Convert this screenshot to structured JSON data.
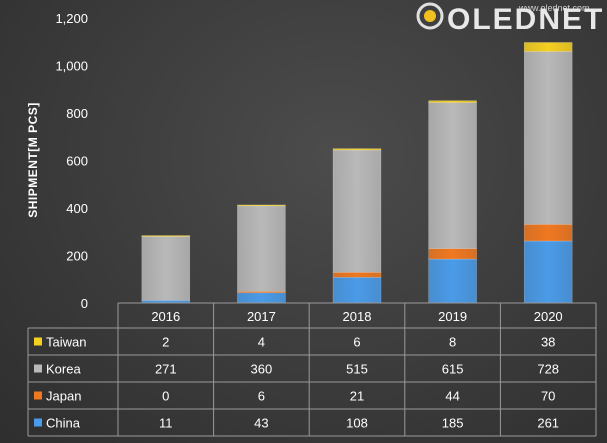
{
  "brand": {
    "url": "www.olednet.com",
    "name": "OLEDNET"
  },
  "chart_data": {
    "type": "bar",
    "stacked": true,
    "categories": [
      "2016",
      "2017",
      "2018",
      "2019",
      "2020"
    ],
    "series": [
      {
        "name": "China",
        "values": [
          11,
          43,
          108,
          185,
          261
        ],
        "color": "#4a9be8"
      },
      {
        "name": "Japan",
        "values": [
          0,
          6,
          21,
          44,
          70
        ],
        "color": "#f07820"
      },
      {
        "name": "Korea",
        "values": [
          271,
          360,
          515,
          615,
          728
        ],
        "color": "#b9b9b9"
      },
      {
        "name": "Taiwan",
        "values": [
          2,
          4,
          6,
          8,
          38
        ],
        "color": "#f5d020"
      }
    ],
    "ylabel": "SHIPMENT[M PCS]",
    "yticks": [
      "0",
      "200",
      "400",
      "600",
      "800",
      "1,000",
      "1,200"
    ],
    "ylim": [
      0,
      1200
    ],
    "legend": "data-table-left"
  }
}
